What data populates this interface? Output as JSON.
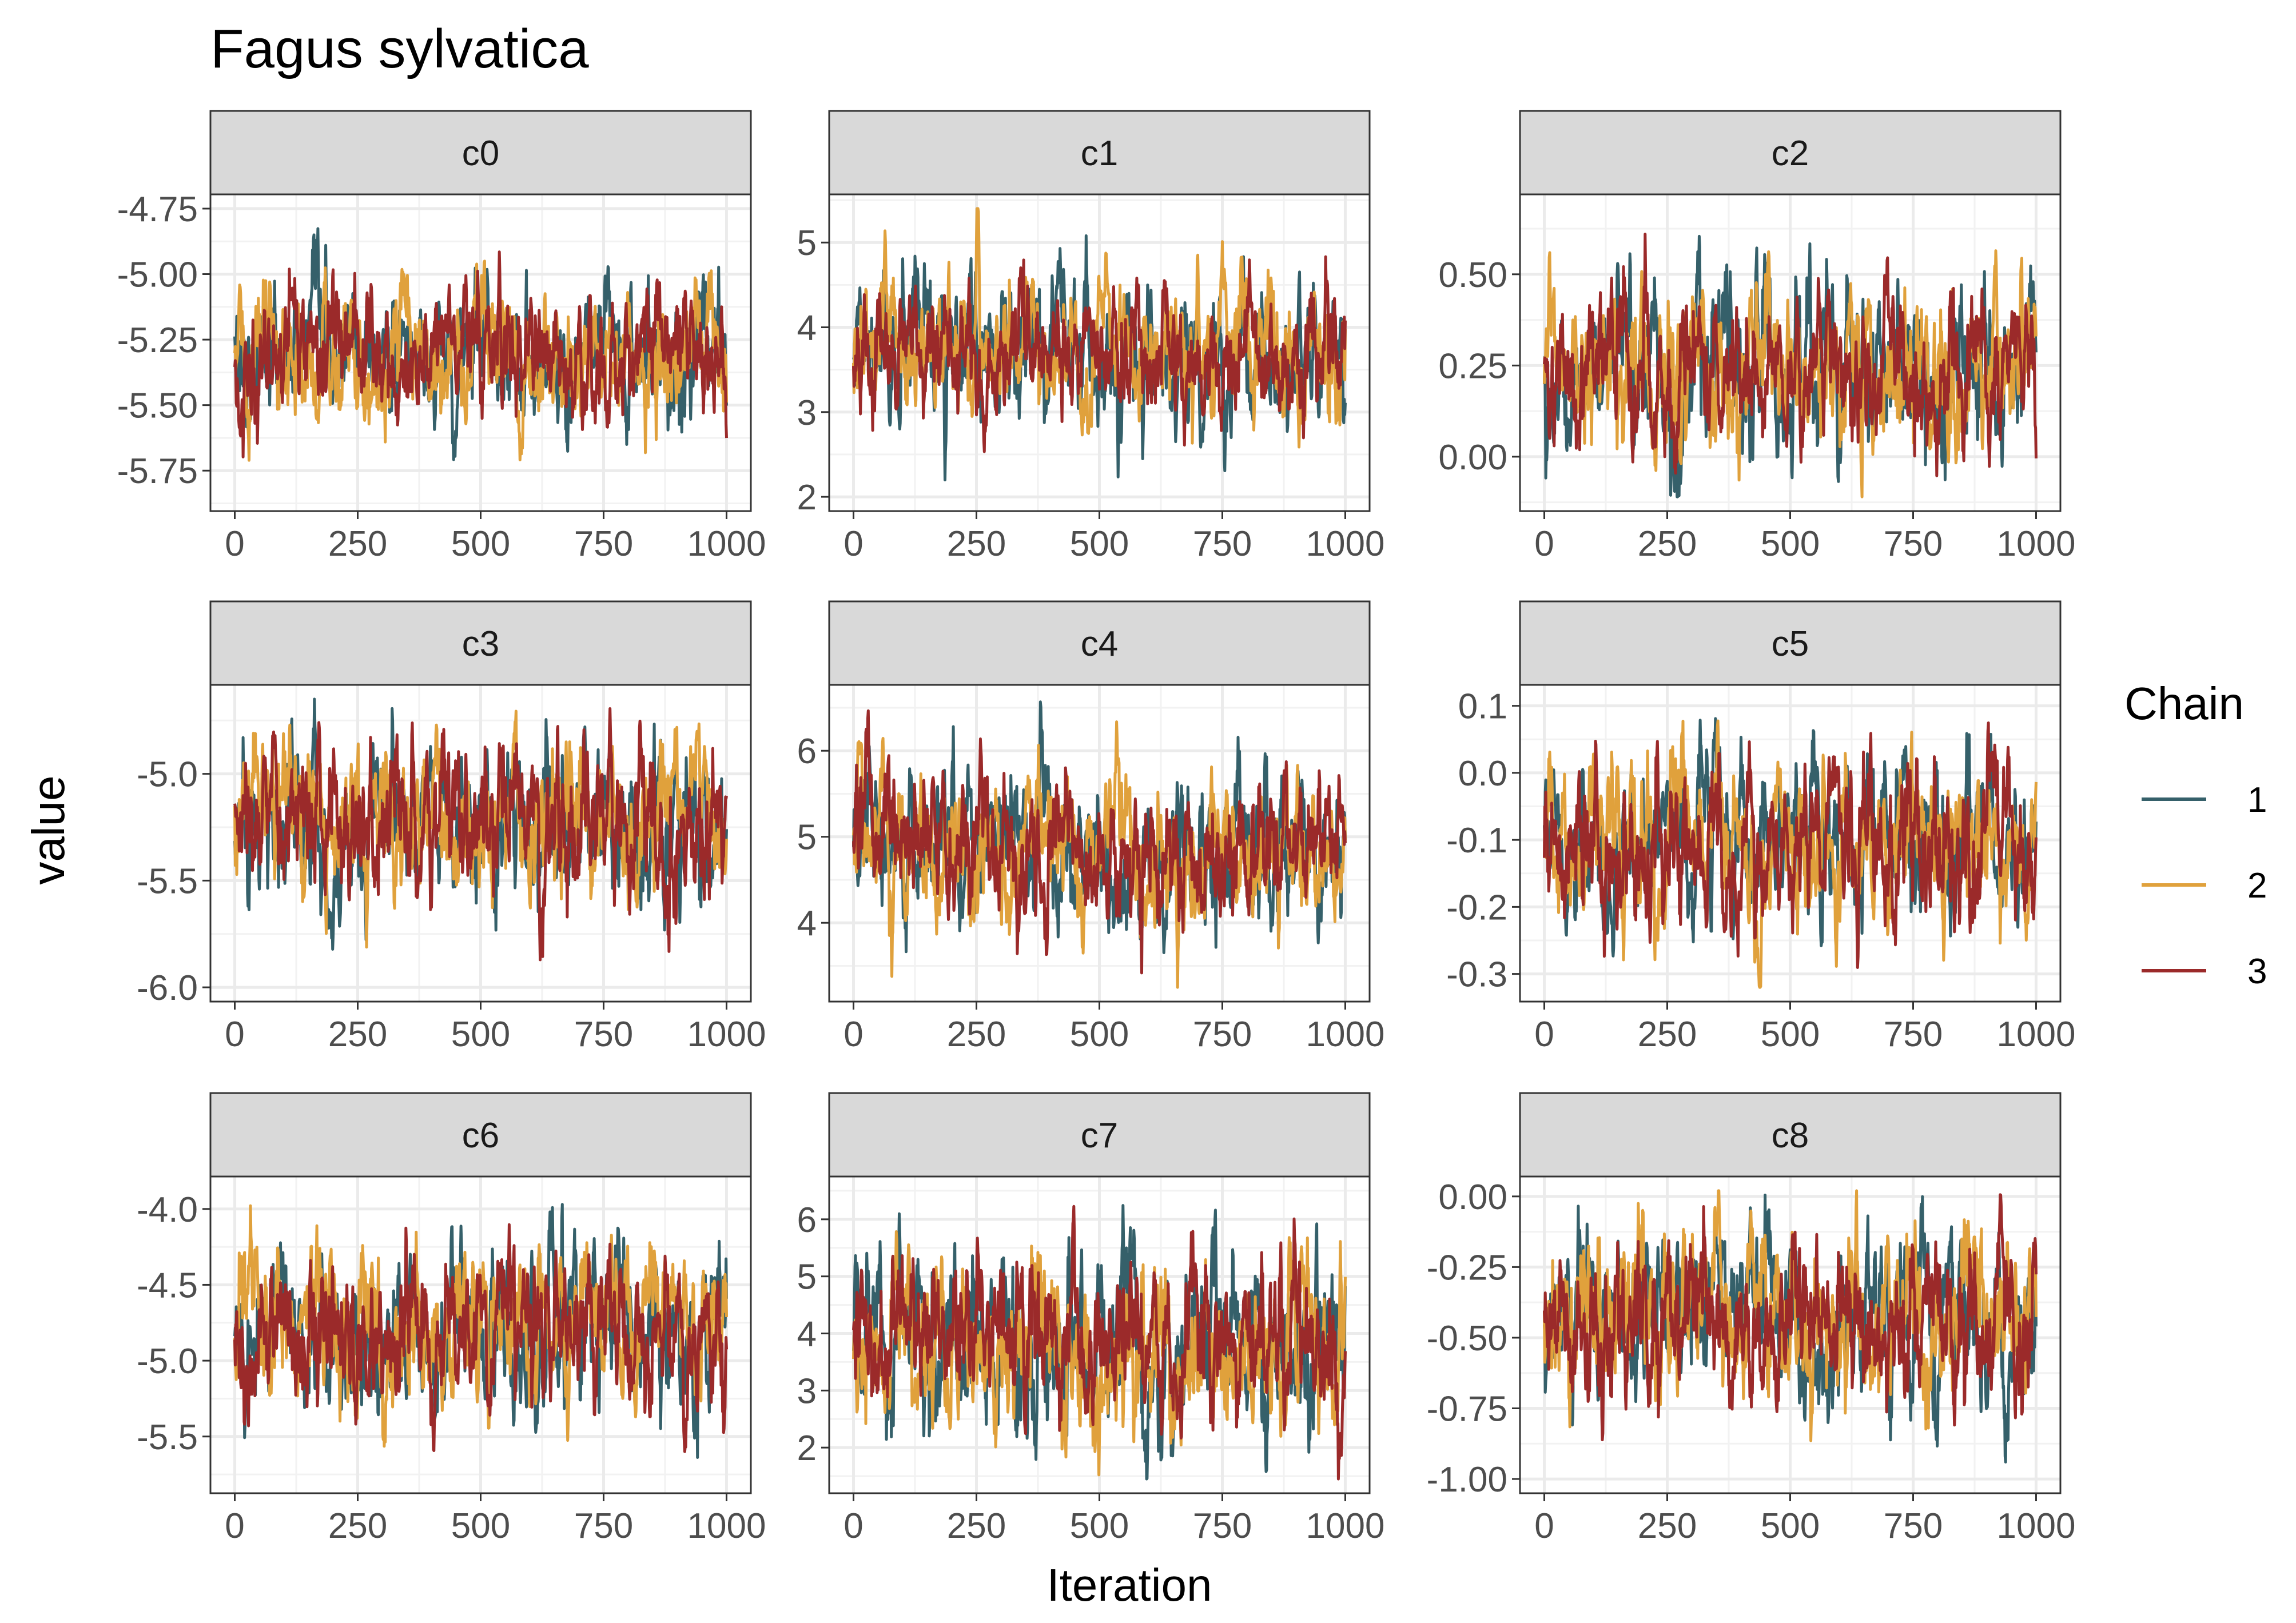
{
  "title": "Fagus sylvatica",
  "xlabel": "Iteration",
  "ylabel": "value",
  "legend": {
    "title": "Chain",
    "items": [
      {
        "label": "1",
        "color": "#35606a"
      },
      {
        "label": "2",
        "color": "#e0a13c"
      },
      {
        "label": "3",
        "color": "#9b2a2a"
      }
    ]
  },
  "chart_data": {
    "type": "line",
    "title": "Fagus sylvatica",
    "xlabel": "Iteration",
    "ylabel": "value",
    "legend_position": "right",
    "grid": true,
    "facets": [
      {
        "name": "c0",
        "xlim": [
          0,
          1000
        ],
        "x_ticks": [
          "0",
          "250",
          "500",
          "750",
          "1000"
        ],
        "ylim": [
          -5.85,
          -4.75
        ],
        "y_ticks": [
          "-4.75",
          "-5.00",
          "-5.25",
          "-5.50",
          "-5.75"
        ],
        "chain_means": [
          -5.31,
          -5.32,
          -5.3
        ],
        "chain_spread": [
          0.13,
          0.13,
          0.13
        ]
      },
      {
        "name": "c1",
        "xlim": [
          0,
          1000
        ],
        "x_ticks": [
          "0",
          "250",
          "500",
          "750",
          "1000"
        ],
        "ylim": [
          2.0,
          5.4
        ],
        "y_ticks": [
          "2",
          "3",
          "4",
          "5"
        ],
        "chain_means": [
          3.6,
          3.75,
          3.7
        ],
        "chain_spread": [
          0.45,
          0.4,
          0.38
        ]
      },
      {
        "name": "c2",
        "xlim": [
          0,
          1000
        ],
        "x_ticks": [
          "0",
          "250",
          "500",
          "750",
          "1000"
        ],
        "ylim": [
          -0.11,
          0.68
        ],
        "y_ticks": [
          "0.00",
          "0.25",
          "0.50"
        ],
        "chain_means": [
          0.25,
          0.24,
          0.24
        ],
        "chain_spread": [
          0.12,
          0.11,
          0.1
        ]
      },
      {
        "name": "c3",
        "xlim": [
          0,
          1000
        ],
        "x_ticks": [
          "0",
          "250",
          "500",
          "750",
          "1000"
        ],
        "ylim": [
          -6.0,
          -4.65
        ],
        "y_ticks": [
          "-5.0",
          "-5.5",
          "-6.0"
        ],
        "chain_means": [
          -5.25,
          -5.18,
          -5.22
        ],
        "chain_spread": [
          0.2,
          0.18,
          0.19
        ]
      },
      {
        "name": "c4",
        "xlim": [
          0,
          1000
        ],
        "x_ticks": [
          "0",
          "250",
          "500",
          "750",
          "1000"
        ],
        "ylim": [
          3.25,
          6.6
        ],
        "y_ticks": [
          "4",
          "5",
          "6"
        ],
        "chain_means": [
          4.8,
          4.85,
          4.9
        ],
        "chain_spread": [
          0.45,
          0.42,
          0.42
        ]
      },
      {
        "name": "c5",
        "xlim": [
          0,
          1000
        ],
        "x_ticks": [
          "0",
          "250",
          "500",
          "750",
          "1000"
        ],
        "ylim": [
          -0.32,
          0.11
        ],
        "y_ticks": [
          "0.1",
          "0.0",
          "-0.1",
          "-0.2",
          "-0.3"
        ],
        "chain_means": [
          -0.1,
          -0.11,
          -0.11
        ],
        "chain_spread": [
          0.06,
          0.06,
          0.06
        ]
      },
      {
        "name": "c6",
        "xlim": [
          0,
          1000
        ],
        "x_ticks": [
          "0",
          "250",
          "500",
          "750",
          "1000"
        ],
        "ylim": [
          -5.78,
          -3.88
        ],
        "y_ticks": [
          "-4.0",
          "-4.5",
          "-5.0",
          "-5.5"
        ],
        "chain_means": [
          -4.85,
          -4.78,
          -4.8
        ],
        "chain_spread": [
          0.27,
          0.26,
          0.26
        ]
      },
      {
        "name": "c7",
        "xlim": [
          0,
          1000
        ],
        "x_ticks": [
          "0",
          "250",
          "500",
          "750",
          "1000"
        ],
        "ylim": [
          1.45,
          6.5
        ],
        "y_ticks": [
          "2",
          "3",
          "4",
          "5",
          "6"
        ],
        "chain_means": [
          3.9,
          3.7,
          4.0
        ],
        "chain_spread": [
          0.8,
          0.75,
          0.7
        ]
      },
      {
        "name": "c8",
        "xlim": [
          0,
          1000
        ],
        "x_ticks": [
          "0",
          "250",
          "500",
          "750",
          "1000"
        ],
        "ylim": [
          -1.0,
          0.02
        ],
        "y_ticks": [
          "0.00",
          "-0.25",
          "-0.50",
          "-0.75",
          "-1.00"
        ],
        "chain_means": [
          -0.43,
          -0.42,
          -0.43
        ],
        "chain_spread": [
          0.15,
          0.15,
          0.14
        ]
      }
    ],
    "series": [
      {
        "name": "1",
        "color": "#35606a"
      },
      {
        "name": "2",
        "color": "#e0a13c"
      },
      {
        "name": "3",
        "color": "#9b2a2a"
      }
    ]
  }
}
